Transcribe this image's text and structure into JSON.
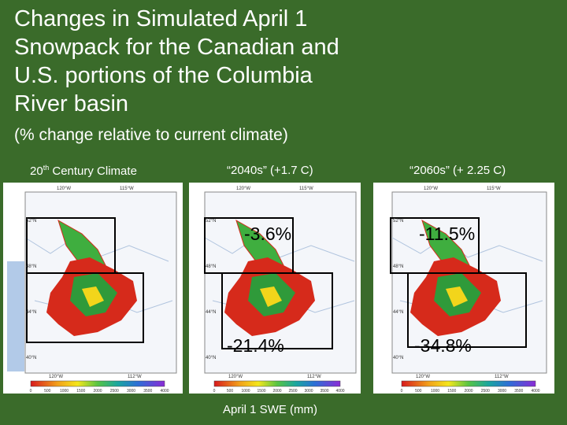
{
  "title": "Changes in Simulated April 1 Snowpack for the Canadian and U.S. portions of the Columbia River basin",
  "subtitle": "(% change relative to current climate)",
  "panels": [
    {
      "label_main": "20",
      "label_sup": "th",
      "label_rest": " Century Climate",
      "canada_pct": "",
      "us_pct": ""
    },
    {
      "label_main": "“2040s” (+1.7 C)",
      "canada_pct": "-3.6%",
      "us_pct": "-21.4%"
    },
    {
      "label_main": "“2060s” (+ 2.25 C)",
      "canada_pct": "-11.5%",
      "us_pct": "-34.8%"
    }
  ],
  "legend_title": "April 1 SWE (mm)",
  "colorbar_ticks": [
    "0",
    "500",
    "1000",
    "1500",
    "2000",
    "2500",
    "3000",
    "3500",
    "4000"
  ],
  "map_lon_labels": [
    "120°W",
    "115°W"
  ],
  "map_lon_labels_bottom": [
    "120°W",
    "112°W"
  ],
  "map_lat_labels": [
    "52°N",
    "48°N",
    "44°N",
    "40°N"
  ],
  "colors": {
    "background": "#3a6b2a"
  }
}
